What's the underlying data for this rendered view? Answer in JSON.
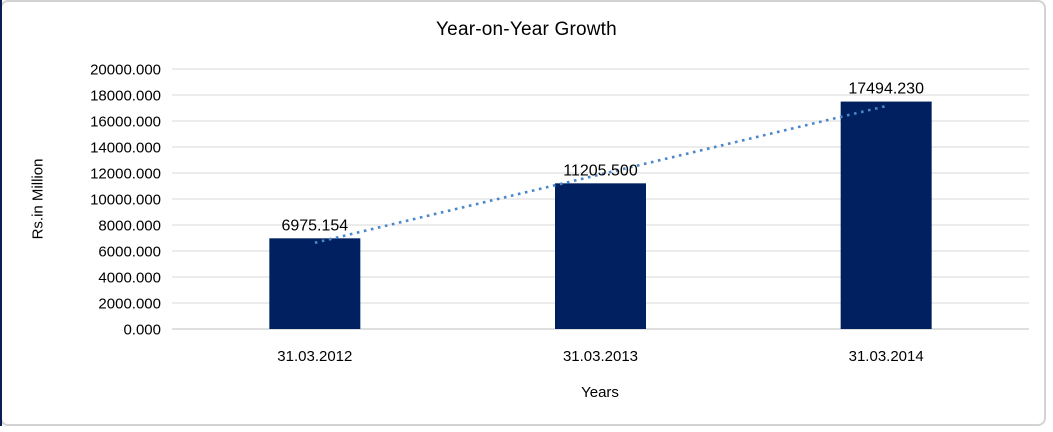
{
  "chart_data": {
    "type": "bar",
    "title": "Year-on-Year Growth",
    "xlabel": "Years",
    "ylabel": "Rs.in Million",
    "categories": [
      "31.03.2012",
      "31.03.2013",
      "31.03.2014"
    ],
    "values": [
      6975.154,
      11205.5,
      17494.23
    ],
    "data_labels": [
      "6975.154",
      "11205.500",
      "17494.230"
    ],
    "ylim": [
      0,
      20000
    ],
    "ytick_values": [
      0,
      2000,
      4000,
      6000,
      8000,
      10000,
      12000,
      14000,
      16000,
      18000,
      20000
    ],
    "ytick_labels": [
      "0.000",
      "2000.000",
      "4000.000",
      "6000.000",
      "8000.000",
      "10000.000",
      "12000.000",
      "14000.000",
      "16000.000",
      "18000.000",
      "20000.000"
    ],
    "grid": true,
    "legend": "none",
    "trendline": {
      "type": "linear",
      "style": "dotted"
    },
    "colors": {
      "bar": "#002060",
      "trendline": "#4a87c9",
      "gridline": "#d9d9d9",
      "axis_line": "#bfbfbf",
      "text": "#000000",
      "chart_border": "#d3d3d3",
      "outer_edge": "#0b1f4e"
    }
  }
}
